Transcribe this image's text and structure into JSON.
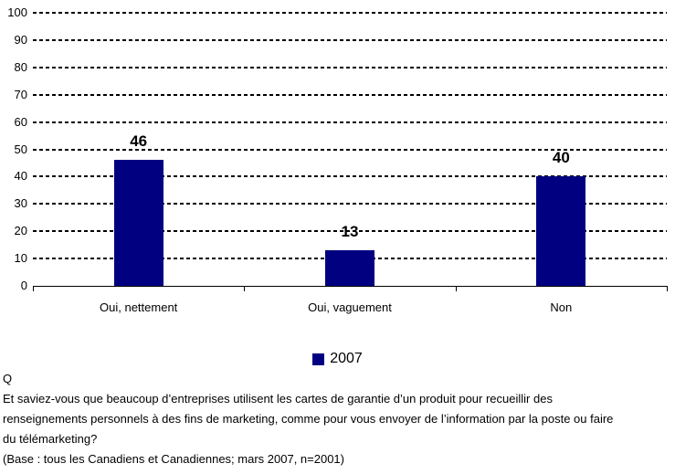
{
  "colors": {
    "bar": "#000080",
    "text": "#000000",
    "grid": "#000000",
    "background": "#ffffff"
  },
  "chart_data": {
    "type": "bar",
    "categories": [
      "Oui, nettement",
      "Oui, vaguement",
      "Non"
    ],
    "series": [
      {
        "name": "2007",
        "values": [
          46,
          13,
          40
        ]
      }
    ],
    "value_labels": [
      "46",
      "13",
      "40"
    ],
    "title": "",
    "xlabel": "",
    "ylabel": "",
    "ylim": [
      0,
      100
    ],
    "yticks": [
      0,
      10,
      20,
      30,
      40,
      50,
      60,
      70,
      80,
      90,
      100
    ],
    "grid": "horizontal-dashed",
    "legend_position": "bottom",
    "bar_color": "#000080"
  },
  "legend": {
    "label": "2007",
    "swatch_color": "#000080"
  },
  "footer": {
    "q_label": "Q",
    "question_lines": [
      "Et saviez-vous que beaucoup d’entreprises utilisent les cartes de garantie d’un produit pour recueillir des",
      "renseignements personnels à des fins de marketing, comme pour vous envoyer de l’information par la poste ou faire",
      "du télémarketing?"
    ],
    "base_note": "(Base : tous les Canadiens et Canadiennes; mars 2007, n=2001)"
  }
}
